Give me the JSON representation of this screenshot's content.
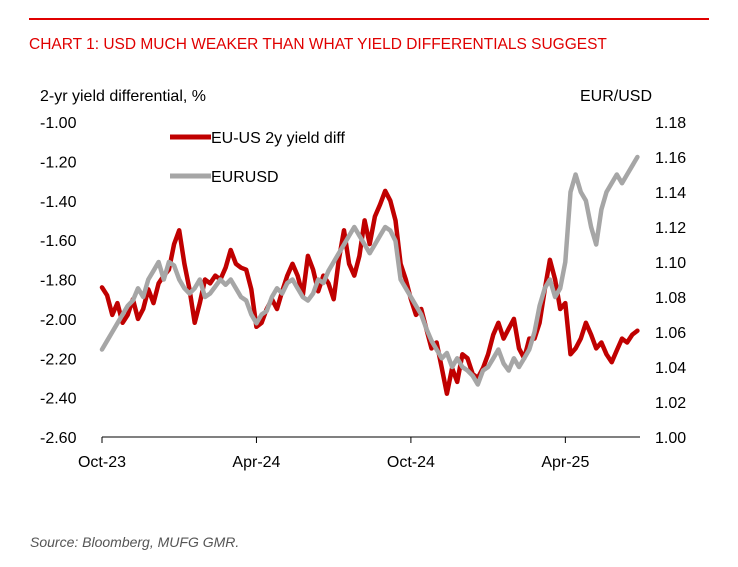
{
  "header": {
    "title": "CHART 1: USD MUCH WEAKER THAN WHAT YIELD DIFFERENTIALS SUGGEST"
  },
  "footer": {
    "source": "Source: Bloomberg, MUFG GMR."
  },
  "colors": {
    "accent": "#e00000",
    "yield_diff": "#c00000",
    "eurusd": "#a6a6a6"
  },
  "chart_data": {
    "type": "line",
    "title": "CHART 1: USD MUCH WEAKER THAN WHAT YIELD DIFFERENTIALS SUGGEST",
    "xlabel": "",
    "ylabel": "2-yr yield differential, %",
    "ylabel_right": "EUR/USD",
    "ylim": [
      -2.6,
      -1.0
    ],
    "ylim_right": [
      1.0,
      1.18
    ],
    "yticks": [
      "-1.00",
      "-1.20",
      "-1.40",
      "-1.60",
      "-1.80",
      "-2.00",
      "-2.20",
      "-2.40",
      "-2.60"
    ],
    "yticks_right": [
      "1.18",
      "1.16",
      "1.14",
      "1.12",
      "1.10",
      "1.08",
      "1.06",
      "1.04",
      "1.02",
      "1.00"
    ],
    "xticks": [
      "Oct-23",
      "Apr-24",
      "Oct-24",
      "Apr-25"
    ],
    "x_unit": "months since Oct-23",
    "xlim": [
      0,
      20.9
    ],
    "xtick_positions": [
      0,
      6,
      12,
      18
    ],
    "grid": false,
    "legend": {
      "placement": "top-left",
      "entries": [
        "EU-US 2y yield diff",
        "EURUSD"
      ]
    },
    "series": [
      {
        "name": "EU-US 2y yield diff",
        "axis": "left",
        "x": [
          0,
          0.2,
          0.4,
          0.6,
          0.8,
          1.0,
          1.2,
          1.4,
          1.6,
          1.8,
          2.0,
          2.2,
          2.4,
          2.6,
          2.8,
          3.0,
          3.2,
          3.4,
          3.6,
          3.8,
          4.0,
          4.2,
          4.4,
          4.6,
          4.8,
          5.0,
          5.2,
          5.4,
          5.6,
          5.8,
          6.0,
          6.2,
          6.4,
          6.6,
          6.8,
          7.0,
          7.2,
          7.4,
          7.6,
          7.8,
          8.0,
          8.2,
          8.4,
          8.6,
          8.8,
          9.0,
          9.2,
          9.4,
          9.6,
          9.8,
          10.0,
          10.2,
          10.4,
          10.6,
          10.8,
          11.0,
          11.2,
          11.4,
          11.6,
          11.8,
          12.0,
          12.2,
          12.4,
          12.6,
          12.8,
          13.0,
          13.2,
          13.4,
          13.6,
          13.8,
          14.0,
          14.2,
          14.4,
          14.6,
          14.8,
          15.0,
          15.2,
          15.4,
          15.6,
          15.8,
          16.0,
          16.2,
          16.4,
          16.6,
          16.8,
          17.0,
          17.2,
          17.4,
          17.6,
          17.8,
          18.0,
          18.2,
          18.4,
          18.6,
          18.8,
          19.0,
          19.2,
          19.4,
          19.6,
          19.8,
          20.0,
          20.2,
          20.4,
          20.6,
          20.8
        ],
        "values": [
          -1.84,
          -1.88,
          -1.98,
          -1.92,
          -2.02,
          -1.98,
          -1.9,
          -2.0,
          -1.95,
          -1.85,
          -1.92,
          -1.82,
          -1.78,
          -1.75,
          -1.62,
          -1.55,
          -1.72,
          -1.85,
          -2.02,
          -1.92,
          -1.8,
          -1.82,
          -1.78,
          -1.8,
          -1.74,
          -1.65,
          -1.72,
          -1.74,
          -1.75,
          -1.85,
          -2.04,
          -2.02,
          -1.95,
          -1.9,
          -1.95,
          -1.86,
          -1.78,
          -1.72,
          -1.78,
          -1.88,
          -1.68,
          -1.75,
          -1.86,
          -1.78,
          -1.82,
          -1.9,
          -1.7,
          -1.55,
          -1.72,
          -1.78,
          -1.68,
          -1.5,
          -1.62,
          -1.48,
          -1.42,
          -1.35,
          -1.4,
          -1.5,
          -1.72,
          -1.8,
          -1.9,
          -1.98,
          -1.95,
          -2.05,
          -2.15,
          -2.12,
          -2.25,
          -2.38,
          -2.25,
          -2.32,
          -2.18,
          -2.2,
          -2.28,
          -2.3,
          -2.25,
          -2.18,
          -2.08,
          -2.02,
          -2.1,
          -2.05,
          -2.0,
          -2.15,
          -2.2,
          -2.1,
          -2.1,
          -2.02,
          -1.85,
          -1.7,
          -1.8,
          -1.95,
          -1.92,
          -2.18,
          -2.15,
          -2.1,
          -2.02,
          -2.08,
          -2.15,
          -2.12,
          -2.18,
          -2.22,
          -2.16,
          -2.1,
          -2.12,
          -2.08,
          -2.06
        ],
        "color": "#c00000"
      },
      {
        "name": "EURUSD",
        "axis": "right",
        "x": [
          0,
          0.2,
          0.4,
          0.6,
          0.8,
          1.0,
          1.2,
          1.4,
          1.6,
          1.8,
          2.0,
          2.2,
          2.4,
          2.6,
          2.8,
          3.0,
          3.2,
          3.4,
          3.6,
          3.8,
          4.0,
          4.2,
          4.4,
          4.6,
          4.8,
          5.0,
          5.2,
          5.4,
          5.6,
          5.8,
          6.0,
          6.2,
          6.4,
          6.6,
          6.8,
          7.0,
          7.2,
          7.4,
          7.6,
          7.8,
          8.0,
          8.2,
          8.4,
          8.6,
          8.8,
          9.0,
          9.2,
          9.4,
          9.6,
          9.8,
          10.0,
          10.2,
          10.4,
          10.6,
          10.8,
          11.0,
          11.2,
          11.4,
          11.6,
          11.8,
          12.0,
          12.2,
          12.4,
          12.6,
          12.8,
          13.0,
          13.2,
          13.4,
          13.6,
          13.8,
          14.0,
          14.2,
          14.4,
          14.6,
          14.8,
          15.0,
          15.2,
          15.4,
          15.6,
          15.8,
          16.0,
          16.2,
          16.4,
          16.6,
          16.8,
          17.0,
          17.2,
          17.4,
          17.6,
          17.8,
          18.0,
          18.2,
          18.4,
          18.6,
          18.8,
          19.0,
          19.2,
          19.4,
          19.6,
          19.8,
          20.0,
          20.2,
          20.4,
          20.6,
          20.8
        ],
        "values": [
          1.05,
          1.055,
          1.06,
          1.065,
          1.07,
          1.075,
          1.078,
          1.085,
          1.08,
          1.09,
          1.095,
          1.1,
          1.09,
          1.1,
          1.098,
          1.09,
          1.085,
          1.082,
          1.085,
          1.09,
          1.08,
          1.082,
          1.086,
          1.09,
          1.087,
          1.09,
          1.085,
          1.08,
          1.078,
          1.07,
          1.065,
          1.07,
          1.072,
          1.08,
          1.085,
          1.082,
          1.088,
          1.09,
          1.085,
          1.08,
          1.078,
          1.082,
          1.09,
          1.088,
          1.095,
          1.1,
          1.105,
          1.11,
          1.115,
          1.12,
          1.115,
          1.11,
          1.105,
          1.11,
          1.115,
          1.12,
          1.118,
          1.112,
          1.09,
          1.085,
          1.08,
          1.075,
          1.07,
          1.062,
          1.055,
          1.05,
          1.045,
          1.048,
          1.04,
          1.045,
          1.04,
          1.038,
          1.035,
          1.03,
          1.038,
          1.04,
          1.045,
          1.05,
          1.042,
          1.038,
          1.045,
          1.04,
          1.045,
          1.05,
          1.06,
          1.075,
          1.085,
          1.09,
          1.08,
          1.085,
          1.1,
          1.14,
          1.15,
          1.14,
          1.135,
          1.12,
          1.11,
          1.13,
          1.14,
          1.145,
          1.15,
          1.145,
          1.15,
          1.155,
          1.16
        ],
        "color": "#a6a6a6"
      }
    ]
  }
}
